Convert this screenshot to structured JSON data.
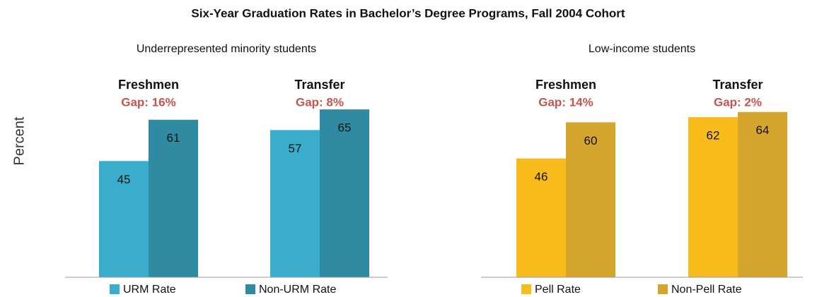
{
  "title": "Six-Year Graduation Rates in Bachelor’s Degree Programs, Fall 2004 Cohort",
  "ylabel": "Percent",
  "chart_data": [
    {
      "type": "bar",
      "subtitle": "Underrepresented minority students",
      "categories": [
        "Freshmen",
        "Transfer"
      ],
      "annotations": [
        "Gap: 16%",
        "Gap: 8%"
      ],
      "series": [
        {
          "name": "URM Rate",
          "color": "#3aadcc",
          "values": [
            45,
            57
          ]
        },
        {
          "name": "Non-URM Rate",
          "color": "#2e8ba1",
          "values": [
            61,
            65
          ]
        }
      ],
      "ylim": [
        0,
        100
      ]
    },
    {
      "type": "bar",
      "subtitle": "Low-income students",
      "categories": [
        "Freshmen",
        "Transfer"
      ],
      "annotations": [
        "Gap: 14%",
        "Gap: 2%"
      ],
      "series": [
        {
          "name": "Pell Rate",
          "color": "#f7bb1b",
          "values": [
            46,
            62
          ]
        },
        {
          "name": "Non-Pell Rate",
          "color": "#d6a52d",
          "values": [
            60,
            64
          ]
        }
      ],
      "ylim": [
        0,
        100
      ]
    }
  ]
}
